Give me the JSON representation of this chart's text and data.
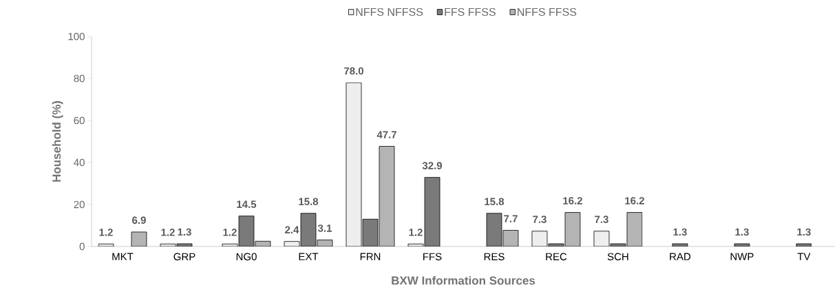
{
  "chart_data": {
    "type": "bar",
    "xlabel": "BXW Information Sources",
    "ylabel": "Household (%)",
    "categories": [
      "MKT",
      "GRP",
      "NG0",
      "EXT",
      "FRN",
      "FFS",
      "RES",
      "REC",
      "SCH",
      "RAD",
      "NWP",
      "TV"
    ],
    "series": [
      {
        "name": "NFFS NFFSS",
        "color": "#eeeeee",
        "values": [
          1.2,
          1.2,
          1.2,
          2.4,
          78.0,
          1.2,
          null,
          7.3,
          7.3,
          null,
          null,
          null
        ],
        "value_labels": [
          "1.2",
          "1.2",
          "1.2",
          "2.4",
          "78.0",
          "1.2",
          null,
          "7.3",
          "7.3",
          null,
          null,
          null
        ]
      },
      {
        "name": "FFS FFSS",
        "color": "#7a7a7a",
        "values": [
          null,
          1.3,
          14.5,
          15.8,
          13,
          32.9,
          15.8,
          1.3,
          1.3,
          1.3,
          1.3,
          1.3
        ],
        "value_labels": [
          null,
          "1.3",
          "14.5",
          "15.8",
          null,
          "32.9",
          "15.8",
          null,
          null,
          "1.3",
          "1.3",
          "1.3"
        ]
      },
      {
        "name": "NFFS FFSS",
        "color": "#b4b4b4",
        "values": [
          6.9,
          null,
          2.5,
          3.1,
          47.7,
          null,
          7.7,
          16.2,
          16.2,
          null,
          null,
          null
        ],
        "value_labels": [
          "6.9",
          null,
          null,
          "3.1",
          "47.7",
          null,
          "7.7",
          "16.2",
          "16.2",
          null,
          null,
          null
        ]
      }
    ],
    "ylim": [
      0,
      100
    ],
    "yticks": [
      0,
      20,
      40,
      60,
      80,
      100
    ],
    "grid": false,
    "legend": "top"
  }
}
